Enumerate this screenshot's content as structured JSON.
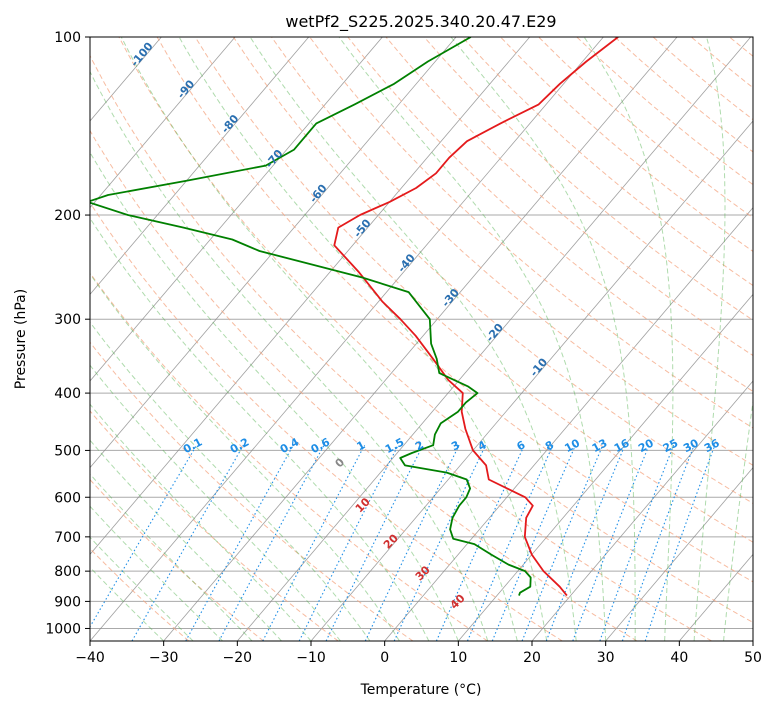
{
  "chart_data": {
    "type": "line",
    "title": "wetPf2_S225.2025.340.20.47.E29",
    "xlabel": "Temperature (°C)",
    "ylabel": "Pressure (hPa)",
    "xlim": [
      -40,
      50
    ],
    "ylim": [
      1050,
      100
    ],
    "y_scale": "log",
    "grid": true,
    "x_ticks": [
      "−40",
      "−30",
      "−20",
      "−10",
      "0",
      "10",
      "20",
      "30",
      "40",
      "50"
    ],
    "y_ticks": [
      "1000",
      "900",
      "800",
      "700",
      "600",
      "500",
      "400",
      "300",
      "200",
      "100"
    ],
    "colors": {
      "temperature": "#e41a1c",
      "dewpoint": "#008000",
      "dry_adiabats": "#f4a582",
      "moist_adiabats": "#4daf4a",
      "mixing_ratio": "#1e8ee6",
      "isotherms": "#888888",
      "isobars": "#aaaaaa"
    },
    "series": [
      {
        "key": "temperature",
        "p": [
          880,
          850,
          800,
          750,
          700,
          650,
          620,
          600,
          560,
          530,
          500,
          460,
          430,
          400,
          380,
          350,
          320,
          300,
          280,
          250,
          225,
          210,
          200,
          190,
          180,
          170,
          160,
          150,
          140,
          130,
          120,
          110,
          100
        ],
        "t": [
          19.5,
          17.5,
          13.5,
          10.0,
          7.0,
          5.0,
          4.5,
          2.5,
          -4.5,
          -6.5,
          -10.0,
          -13.5,
          -16.0,
          -18.0,
          -21.5,
          -26.0,
          -31.0,
          -35.0,
          -39.5,
          -46.0,
          -52.5,
          -54.0,
          -52.5,
          -50.0,
          -48.0,
          -47.0,
          -47.0,
          -46.5,
          -44.0,
          -41.0,
          -40.5,
          -39.5,
          -38.0
        ]
      },
      {
        "key": "dewpoint",
        "p": [
          880,
          870,
          850,
          820,
          800,
          780,
          750,
          720,
          705,
          680,
          650,
          620,
          600,
          580,
          560,
          545,
          530,
          515,
          505,
          490,
          470,
          450,
          430,
          415,
          400,
          390,
          370,
          350,
          330,
          300,
          270,
          255,
          240,
          230,
          220,
          210,
          200,
          190,
          185,
          175,
          165,
          155,
          140,
          130,
          120,
          110,
          100
        ],
        "t": [
          13.0,
          12.8,
          13.5,
          12.5,
          11.0,
          8.0,
          4.5,
          1.0,
          -2.5,
          -4.0,
          -5.0,
          -5.5,
          -5.5,
          -6.0,
          -7.5,
          -11.0,
          -17.5,
          -19.0,
          -18.0,
          -16.0,
          -17.0,
          -17.5,
          -16.5,
          -16.5,
          -16.0,
          -18.0,
          -23.5,
          -25.5,
          -28.0,
          -31.0,
          -37.0,
          -45.0,
          -55.0,
          -62.0,
          -67.0,
          -75.0,
          -84.0,
          -91.0,
          -89.0,
          -80.0,
          -71.0,
          -69.0,
          -69.0,
          -66.0,
          -63.0,
          -61.0,
          -58.0
        ]
      }
    ],
    "dry_adiabat_labels": [
      "-100",
      "-90",
      "-80",
      "-70",
      "-60",
      "-50",
      "-40",
      "-30",
      "-20",
      "-10"
    ],
    "mixing_ratio_labels": [
      "0.1",
      "0.2",
      "0.4",
      "0.6",
      "1",
      "1.5",
      "2",
      "3",
      "4",
      "6",
      "8",
      "10",
      "13",
      "16",
      "20",
      "25",
      "30",
      "36"
    ],
    "mixing_ratio_values": [
      0.1,
      0.2,
      0.4,
      0.6,
      1,
      1.5,
      2,
      3,
      4,
      6,
      8,
      10,
      13,
      16,
      20,
      25,
      30,
      36
    ],
    "moist_adiabat_labels": [
      "0",
      "10",
      "20",
      "30",
      "40"
    ]
  }
}
